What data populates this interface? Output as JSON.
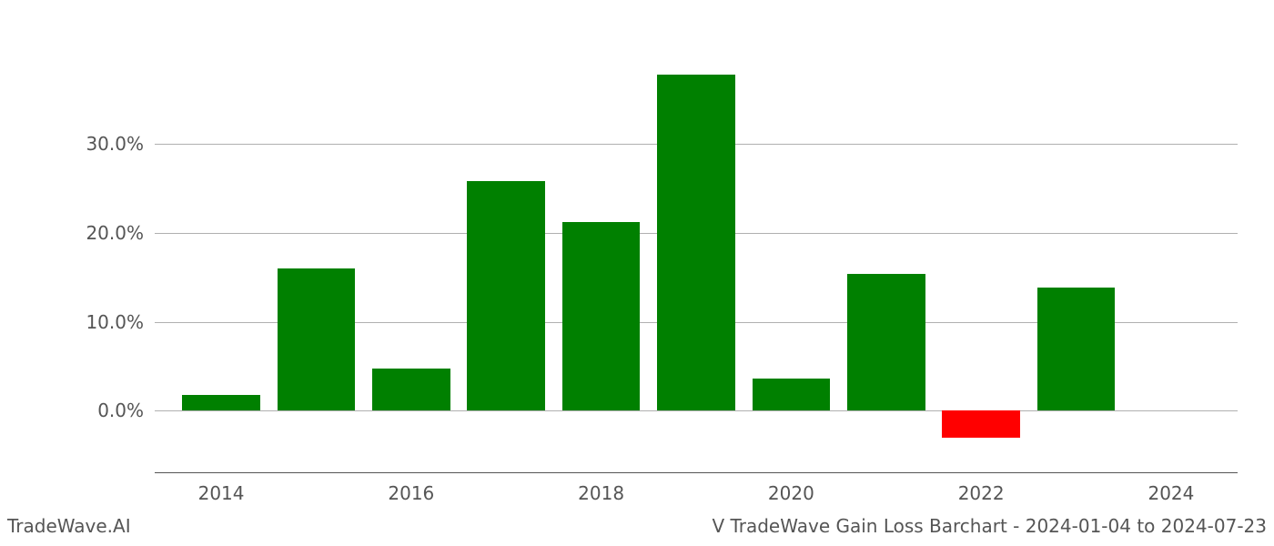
{
  "chart": {
    "type": "bar",
    "categories": [
      2014,
      2015,
      2016,
      2017,
      2018,
      2019,
      2020,
      2021,
      2022,
      2023
    ],
    "values": [
      1.8,
      16.0,
      4.7,
      25.8,
      21.2,
      37.8,
      3.6,
      15.4,
      -3.0,
      13.8
    ],
    "bar_colors": [
      "#008000",
      "#008000",
      "#008000",
      "#008000",
      "#008000",
      "#008000",
      "#008000",
      "#008000",
      "#ff0000",
      "#008000"
    ],
    "ylim": [
      -7,
      40
    ],
    "yticks": [
      0,
      10,
      20,
      30
    ],
    "ytick_labels": [
      "0.0%",
      "10.0%",
      "20.0%",
      "30.0%"
    ],
    "xticks": [
      2014,
      2016,
      2018,
      2020,
      2022,
      2024
    ],
    "xtick_labels": [
      "2014",
      "2016",
      "2018",
      "2020",
      "2022",
      "2024"
    ],
    "xlim": [
      2013.3,
      2024.7
    ],
    "bar_width": 0.82,
    "background_color": "#ffffff",
    "grid_color": "#b0b0b0",
    "tick_font_color": "#555555",
    "tick_fontsize": 20,
    "footer_fontsize": 20
  },
  "footer": {
    "left": "TradeWave.AI",
    "right": "V TradeWave Gain Loss Barchart - 2024-01-04 to 2024-07-23"
  }
}
